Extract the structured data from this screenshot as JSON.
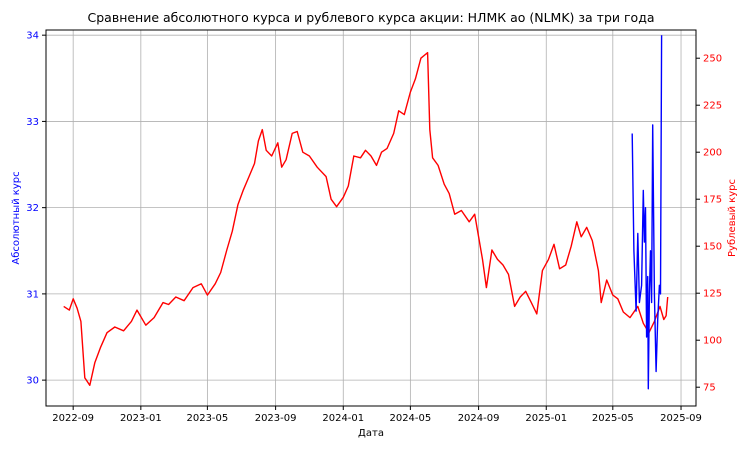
{
  "chart_data": {
    "type": "line",
    "title": "Сравнение абсолютного курса и рублевого курса акции: НЛМК ао (NLMK) за три года",
    "xlabel": "Дата",
    "ylabel_left": "Абсолютный курс",
    "ylabel_right": "Рублевый курс",
    "x_ticks": [
      "2022-09",
      "2023-01",
      "2023-05",
      "2023-09",
      "2024-01",
      "2024-05",
      "2024-09",
      "2025-01",
      "2025-05",
      "2025-09"
    ],
    "y_left_ticks": [
      "30",
      "31",
      "32",
      "33",
      "34"
    ],
    "y_right_ticks": [
      "75",
      "100",
      "125",
      "150",
      "175",
      "200",
      "225",
      "250"
    ],
    "xlim": [
      "2022-07-14",
      "2025-09-28"
    ],
    "ylim_left": [
      29.7,
      34.06
    ],
    "ylim_right": [
      65,
      265
    ],
    "grid": true,
    "colors": {
      "absolute": "#0000ff",
      "ruble": "#ff0000",
      "left_axis": "#0000ff",
      "right_axis": "#ff0000",
      "grid": "#b0b0b0"
    },
    "series": [
      {
        "axis": "right",
        "color": "#ff0000",
        "points": [
          [
            "2022-08-15",
            118
          ],
          [
            "2022-08-25",
            116
          ],
          [
            "2022-09-01",
            122
          ],
          [
            "2022-09-08",
            117
          ],
          [
            "2022-09-15",
            110
          ],
          [
            "2022-09-22",
            80
          ],
          [
            "2022-10-01",
            76
          ],
          [
            "2022-10-10",
            88
          ],
          [
            "2022-10-20",
            96
          ],
          [
            "2022-11-01",
            104
          ],
          [
            "2022-11-15",
            107
          ],
          [
            "2022-12-01",
            105
          ],
          [
            "2022-12-15",
            110
          ],
          [
            "2022-12-25",
            116
          ],
          [
            "2023-01-10",
            108
          ],
          [
            "2023-01-25",
            112
          ],
          [
            "2023-02-10",
            120
          ],
          [
            "2023-02-20",
            119
          ],
          [
            "2023-03-05",
            123
          ],
          [
            "2023-03-20",
            121
          ],
          [
            "2023-04-05",
            128
          ],
          [
            "2023-04-20",
            130
          ],
          [
            "2023-05-01",
            124
          ],
          [
            "2023-05-15",
            130
          ],
          [
            "2023-05-25",
            136
          ],
          [
            "2023-06-05",
            148
          ],
          [
            "2023-06-15",
            158
          ],
          [
            "2023-06-25",
            172
          ],
          [
            "2023-07-05",
            180
          ],
          [
            "2023-07-15",
            187
          ],
          [
            "2023-07-25",
            194
          ],
          [
            "2023-08-01",
            206
          ],
          [
            "2023-08-08",
            212
          ],
          [
            "2023-08-15",
            201
          ],
          [
            "2023-08-25",
            198
          ],
          [
            "2023-09-05",
            205
          ],
          [
            "2023-09-12",
            192
          ],
          [
            "2023-09-20",
            196
          ],
          [
            "2023-10-01",
            210
          ],
          [
            "2023-10-10",
            211
          ],
          [
            "2023-10-20",
            200
          ],
          [
            "2023-11-01",
            198
          ],
          [
            "2023-11-15",
            192
          ],
          [
            "2023-12-01",
            187
          ],
          [
            "2023-12-10",
            175
          ],
          [
            "2023-12-20",
            171
          ],
          [
            "2024-01-01",
            176
          ],
          [
            "2024-01-10",
            182
          ],
          [
            "2024-01-20",
            198
          ],
          [
            "2024-02-01",
            197
          ],
          [
            "2024-02-10",
            201
          ],
          [
            "2024-02-20",
            198
          ],
          [
            "2024-03-01",
            193
          ],
          [
            "2024-03-10",
            200
          ],
          [
            "2024-03-20",
            202
          ],
          [
            "2024-04-01",
            210
          ],
          [
            "2024-04-10",
            222
          ],
          [
            "2024-04-20",
            220
          ],
          [
            "2024-05-01",
            232
          ],
          [
            "2024-05-10",
            239
          ],
          [
            "2024-05-20",
            250
          ],
          [
            "2024-06-01",
            253
          ],
          [
            "2024-06-05",
            212
          ],
          [
            "2024-06-10",
            197
          ],
          [
            "2024-06-20",
            193
          ],
          [
            "2024-07-01",
            183
          ],
          [
            "2024-07-10",
            178
          ],
          [
            "2024-07-20",
            167
          ],
          [
            "2024-08-01",
            169
          ],
          [
            "2024-08-15",
            163
          ],
          [
            "2024-08-25",
            167
          ],
          [
            "2024-09-01",
            155
          ],
          [
            "2024-09-08",
            143
          ],
          [
            "2024-09-15",
            128
          ],
          [
            "2024-09-25",
            148
          ],
          [
            "2024-10-05",
            143
          ],
          [
            "2024-10-15",
            140
          ],
          [
            "2024-10-25",
            135
          ],
          [
            "2024-11-05",
            118
          ],
          [
            "2024-11-15",
            123
          ],
          [
            "2024-11-25",
            126
          ],
          [
            "2024-12-05",
            120
          ],
          [
            "2024-12-15",
            114
          ],
          [
            "2024-12-25",
            137
          ],
          [
            "2025-01-05",
            143
          ],
          [
            "2025-01-15",
            151
          ],
          [
            "2025-01-25",
            138
          ],
          [
            "2025-02-05",
            140
          ],
          [
            "2025-02-15",
            150
          ],
          [
            "2025-02-25",
            163
          ],
          [
            "2025-03-05",
            155
          ],
          [
            "2025-03-15",
            160
          ],
          [
            "2025-03-25",
            153
          ],
          [
            "2025-04-05",
            137
          ],
          [
            "2025-04-10",
            120
          ],
          [
            "2025-04-20",
            132
          ],
          [
            "2025-05-01",
            124
          ],
          [
            "2025-05-10",
            122
          ],
          [
            "2025-05-20",
            115
          ],
          [
            "2025-06-01",
            112
          ],
          [
            "2025-06-15",
            118
          ],
          [
            "2025-06-25",
            109
          ],
          [
            "2025-07-05",
            104
          ],
          [
            "2025-07-15",
            110
          ],
          [
            "2025-07-25",
            118
          ],
          [
            "2025-08-01",
            111
          ],
          [
            "2025-08-05",
            113
          ],
          [
            "2025-08-08",
            123
          ]
        ]
      },
      {
        "axis": "left",
        "color": "#0000ff",
        "points": [
          [
            "2025-06-05",
            32.86
          ],
          [
            "2025-06-08",
            31.5
          ],
          [
            "2025-06-12",
            30.8
          ],
          [
            "2025-06-15",
            31.7
          ],
          [
            "2025-06-18",
            30.9
          ],
          [
            "2025-06-22",
            31.1
          ],
          [
            "2025-06-25",
            32.2
          ],
          [
            "2025-06-27",
            31.6
          ],
          [
            "2025-06-29",
            32.0
          ],
          [
            "2025-07-01",
            30.5
          ],
          [
            "2025-07-03",
            31.2
          ],
          [
            "2025-07-04",
            29.9
          ],
          [
            "2025-07-06",
            31.0
          ],
          [
            "2025-07-08",
            31.5
          ],
          [
            "2025-07-10",
            30.9
          ],
          [
            "2025-07-12",
            32.96
          ],
          [
            "2025-07-15",
            31.0
          ],
          [
            "2025-07-18",
            30.1
          ],
          [
            "2025-07-21",
            30.7
          ],
          [
            "2025-07-24",
            31.1
          ],
          [
            "2025-07-26",
            31.0
          ],
          [
            "2025-07-28",
            34.0
          ]
        ]
      }
    ]
  }
}
